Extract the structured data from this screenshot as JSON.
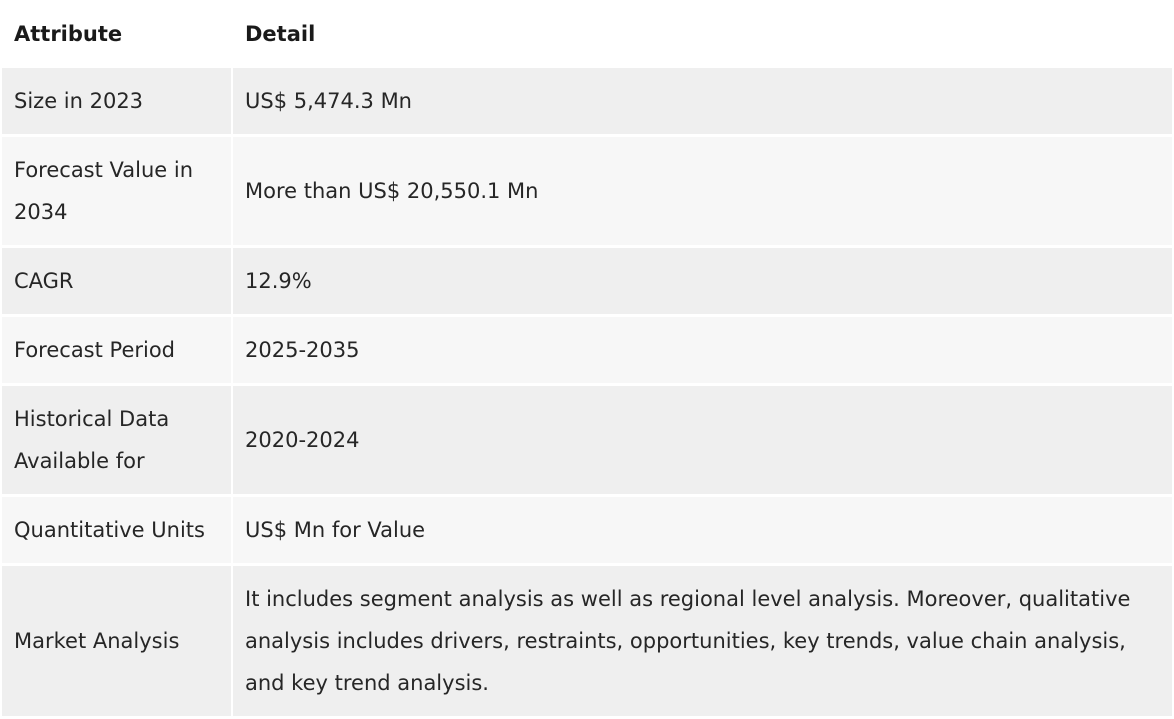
{
  "table": {
    "headers": {
      "attribute": "Attribute",
      "detail": "Detail"
    },
    "rows": [
      {
        "attribute": "Size in 2023",
        "detail": "US$ 5,474.3 Mn"
      },
      {
        "attribute": "Forecast Value in 2034",
        "detail": "More than US$ 20,550.1 Mn"
      },
      {
        "attribute": "CAGR",
        "detail": "12.9%"
      },
      {
        "attribute": "Forecast Period",
        "detail": "2025-2035"
      },
      {
        "attribute": "Historical Data Available for",
        "detail": "2020-2024"
      },
      {
        "attribute": "Quantitative Units",
        "detail": "US$ Mn for Value"
      },
      {
        "attribute": "Market Analysis",
        "detail": "It includes segment analysis as well as regional level analysis. Moreover, qualitative analysis includes drivers, restraints, opportunities, key trends, value chain analysis, and key trend analysis."
      }
    ]
  }
}
